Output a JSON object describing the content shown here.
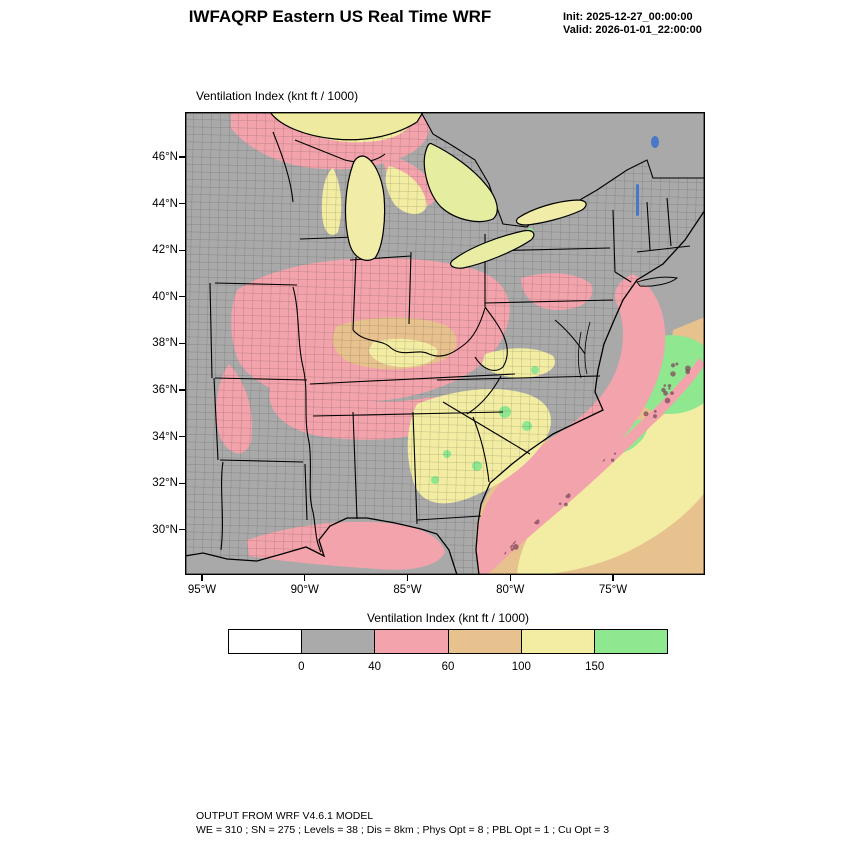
{
  "header": {
    "title": "IWFAQRP Eastern US Real Time WRF",
    "init": "Init: 2025-12-27_00:00:00",
    "valid": "Valid: 2026-01-01_22:00:00"
  },
  "map_panel": {
    "label": "Ventilation Index  (knt ft / 1000)",
    "y_ticks": [
      "46°N",
      "44°N",
      "42°N",
      "40°N",
      "38°N",
      "36°N",
      "34°N",
      "32°N",
      "30°N"
    ],
    "x_ticks": [
      "95°W",
      "90°W",
      "85°W",
      "80°W",
      "75°W"
    ]
  },
  "colorbar": {
    "title": "Ventilation Index  (knt ft / 1000)",
    "labels": [
      "0",
      "40",
      "60",
      "100",
      "150"
    ],
    "colors": [
      "#ffffff",
      "#aaaaaa",
      "#f3a3ab",
      "#e8c28e",
      "#f2eda2",
      "#8fe78f"
    ]
  },
  "footer": {
    "line1": "OUTPUT FROM WRF V4.6.1 MODEL",
    "line2": "WE = 310 ; SN = 275 ; Levels = 38 ; Dis = 8km ; Phys Opt = 8 ; PBL Opt = 1 ; Cu Opt = 3"
  },
  "chart_data": {
    "type": "heatmap",
    "title": "Ventilation Index  (knt ft / 1000)",
    "region": "Eastern US",
    "x_axis": {
      "ticks": [
        "95°W",
        "90°W",
        "85°W",
        "80°W",
        "75°W"
      ]
    },
    "y_axis": {
      "ticks": [
        "46°N",
        "44°N",
        "42°N",
        "40°N",
        "38°N",
        "36°N",
        "34°N",
        "32°N",
        "30°N"
      ]
    },
    "colorbar": {
      "levels": [
        0,
        40,
        60,
        100,
        150
      ],
      "colors": [
        "#ffffff",
        "#aaaaaa",
        "#f3a3ab",
        "#e8c28e",
        "#f2eda2",
        "#8fe78f"
      ],
      "legend_position": "bottom"
    },
    "model": {
      "init": "2025-12-27_00:00:00",
      "valid": "2026-01-01_22:00:00",
      "source": "OUTPUT FROM WRF V4.6.1 MODEL",
      "config": "WE = 310 ; SN = 275 ; Levels = 38 ; Dis = 8km ; Phys Opt = 8 ; PBL Opt = 1 ; Cu Opt = 3"
    },
    "grid": false
  }
}
